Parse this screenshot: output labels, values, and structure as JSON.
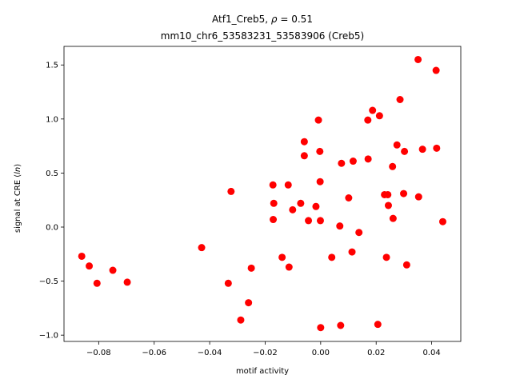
{
  "chart_data": {
    "type": "scatter",
    "title": "Atf1_Creb5, ρ = 0.51",
    "subtitle": "mm10_chr6_53583231_53583906 (Creb5)",
    "xlabel": "motif activity",
    "ylabel": "signal at CRE (ln)",
    "xlim": [
      -0.0925,
      0.0505
    ],
    "ylim": [
      -1.058,
      1.672
    ],
    "xticks": [
      -0.08,
      -0.06,
      -0.04,
      -0.02,
      0.0,
      0.02,
      0.04
    ],
    "xtick_labels": [
      "−0.08",
      "−0.06",
      "−0.04",
      "−0.02",
      "0.00",
      "0.02",
      "0.04"
    ],
    "yticks": [
      -1.0,
      -0.5,
      0.0,
      0.5,
      1.0,
      1.5
    ],
    "ytick_labels": [
      "−1.0",
      "−0.5",
      "0.0",
      "0.5",
      "1.0",
      "1.5"
    ],
    "grid": false,
    "marker_color": "#ff0000",
    "points": [
      {
        "x": -0.0861,
        "y": -0.27
      },
      {
        "x": -0.0834,
        "y": -0.36
      },
      {
        "x": -0.0806,
        "y": -0.52
      },
      {
        "x": -0.0749,
        "y": -0.4
      },
      {
        "x": -0.0697,
        "y": -0.51
      },
      {
        "x": -0.0429,
        "y": -0.19
      },
      {
        "x": -0.0333,
        "y": -0.52
      },
      {
        "x": -0.0323,
        "y": 0.33
      },
      {
        "x": -0.0288,
        "y": -0.86
      },
      {
        "x": -0.026,
        "y": -0.7
      },
      {
        "x": -0.025,
        "y": -0.38
      },
      {
        "x": -0.0172,
        "y": 0.39
      },
      {
        "x": -0.0169,
        "y": 0.22
      },
      {
        "x": -0.0171,
        "y": 0.07
      },
      {
        "x": -0.0139,
        "y": -0.28
      },
      {
        "x": -0.0117,
        "y": 0.39
      },
      {
        "x": -0.0114,
        "y": -0.37
      },
      {
        "x": -0.0101,
        "y": 0.16
      },
      {
        "x": -0.0072,
        "y": 0.22
      },
      {
        "x": -0.0059,
        "y": 0.79
      },
      {
        "x": -0.0059,
        "y": 0.66
      },
      {
        "x": -0.0044,
        "y": 0.06
      },
      {
        "x": -0.0017,
        "y": 0.19
      },
      {
        "x": -0.0008,
        "y": 0.99
      },
      {
        "x": -0.0003,
        "y": 0.7
      },
      {
        "x": -0.0002,
        "y": 0.42
      },
      {
        "x": -0.0001,
        "y": 0.06
      },
      {
        "x": 0.0,
        "y": -0.93
      },
      {
        "x": 0.004,
        "y": -0.28
      },
      {
        "x": 0.0069,
        "y": 0.01
      },
      {
        "x": 0.0072,
        "y": -0.91
      },
      {
        "x": 0.0075,
        "y": 0.59
      },
      {
        "x": 0.0101,
        "y": 0.27
      },
      {
        "x": 0.0113,
        "y": -0.23
      },
      {
        "x": 0.0117,
        "y": 0.61
      },
      {
        "x": 0.0138,
        "y": -0.05
      },
      {
        "x": 0.017,
        "y": 0.99
      },
      {
        "x": 0.0171,
        "y": 0.63
      },
      {
        "x": 0.0187,
        "y": 1.08
      },
      {
        "x": 0.0206,
        "y": -0.9
      },
      {
        "x": 0.0212,
        "y": 1.03
      },
      {
        "x": 0.023,
        "y": 0.3
      },
      {
        "x": 0.0237,
        "y": -0.28
      },
      {
        "x": 0.0242,
        "y": 0.3
      },
      {
        "x": 0.0244,
        "y": 0.2
      },
      {
        "x": 0.0259,
        "y": 0.56
      },
      {
        "x": 0.0261,
        "y": 0.08
      },
      {
        "x": 0.0275,
        "y": 0.76
      },
      {
        "x": 0.0286,
        "y": 1.18
      },
      {
        "x": 0.0299,
        "y": 0.31
      },
      {
        "x": 0.0302,
        "y": 0.7
      },
      {
        "x": 0.031,
        "y": -0.35
      },
      {
        "x": 0.0351,
        "y": 1.55
      },
      {
        "x": 0.0353,
        "y": 0.28
      },
      {
        "x": 0.0367,
        "y": 0.72
      },
      {
        "x": 0.0416,
        "y": 1.45
      },
      {
        "x": 0.0418,
        "y": 0.73
      },
      {
        "x": 0.044,
        "y": 0.05
      }
    ]
  }
}
